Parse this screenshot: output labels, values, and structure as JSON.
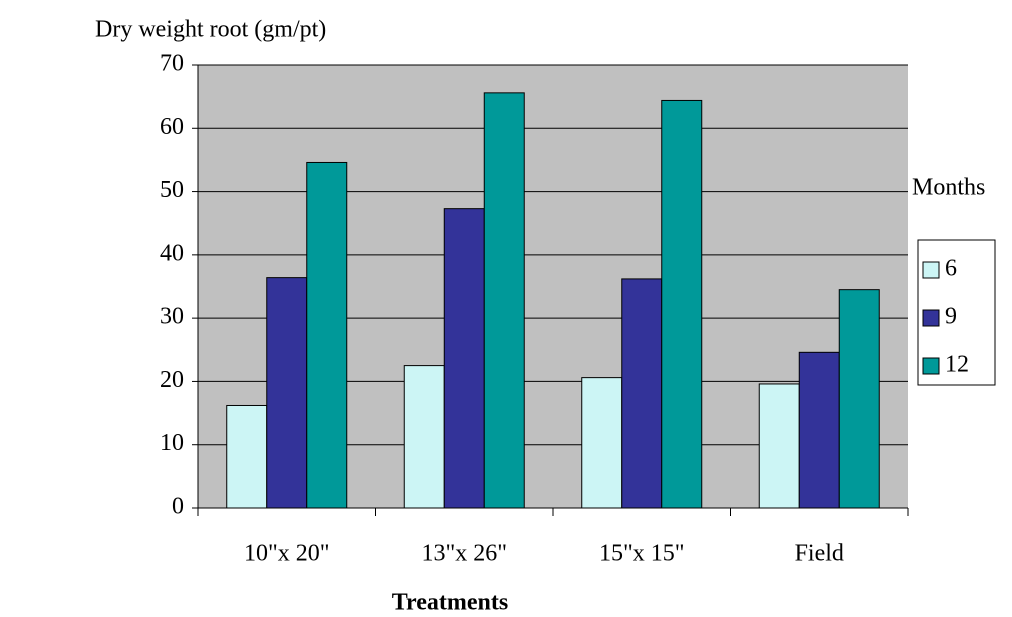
{
  "chart_data": {
    "type": "bar",
    "y_label": "Dry weight root (gm/pt)",
    "x_label": "Treatments",
    "legend_title": "Months",
    "legend": "right",
    "grid": true,
    "categories": [
      "10\"x 20\"",
      "13\"x 26\"",
      "15\"x 15\"",
      "Field"
    ],
    "series": [
      {
        "name": "6",
        "color": "#ccf5f5",
        "values": [
          16.2,
          22.5,
          20.6,
          19.6
        ]
      },
      {
        "name": "9",
        "color": "#333399",
        "values": [
          36.4,
          47.3,
          36.2,
          24.6
        ]
      },
      {
        "name": "12",
        "color": "#009999",
        "values": [
          54.6,
          65.6,
          64.4,
          34.5
        ]
      }
    ],
    "ylim": [
      0,
      70
    ],
    "yticks": [
      0,
      10,
      20,
      30,
      40,
      50,
      60,
      70
    ]
  }
}
